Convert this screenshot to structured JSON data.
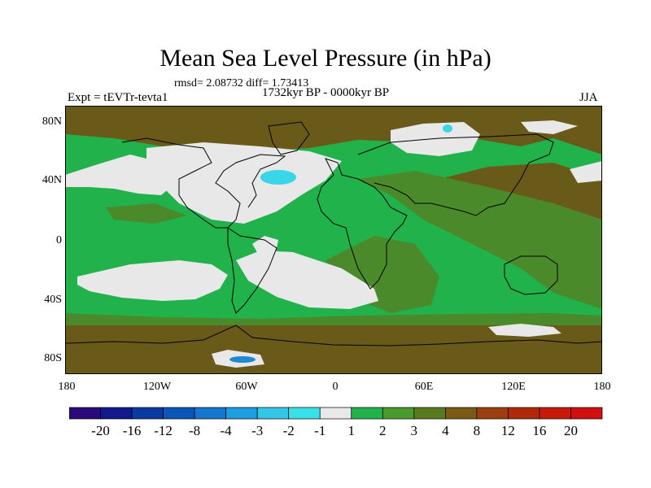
{
  "title": "Mean Sea Level Pressure (in hPa)",
  "stats": "rmsd= 2.08732 diff= 1.73413",
  "period": "1732kyr BP - 0000kyr BP",
  "experiment": "Expt = tEVTr-tevta1",
  "season": "JJA",
  "lat_labels": [
    "80N",
    "40N",
    "0",
    "40S",
    "80S"
  ],
  "lon_labels": [
    "180",
    "120W",
    "60W",
    "0",
    "60E",
    "120E",
    "180"
  ],
  "colorbar": {
    "labels": [
      "-20",
      "-16",
      "-12",
      "-8",
      "-4",
      "-3",
      "-2",
      "-1",
      "1",
      "2",
      "3",
      "4",
      "8",
      "12",
      "16",
      "20"
    ],
    "colors": [
      "#2a0a7a",
      "#101a8a",
      "#0a3aa0",
      "#0a56b8",
      "#1576cf",
      "#1e9ee0",
      "#35c5e6",
      "#38e0e8",
      "#e8e8e8",
      "#22b24c",
      "#4a9a2e",
      "#5a7a1e",
      "#7a5a14",
      "#9a4010",
      "#b02a0a",
      "#c81a0a",
      "#d01010"
    ]
  },
  "map_colors": {
    "green": "#22b24c",
    "olive": "#4a8a2a",
    "brown": "#6a5a1a",
    "light": "#e8e8e8",
    "cyan": "#38d6e6",
    "blue": "#1e88d0"
  }
}
